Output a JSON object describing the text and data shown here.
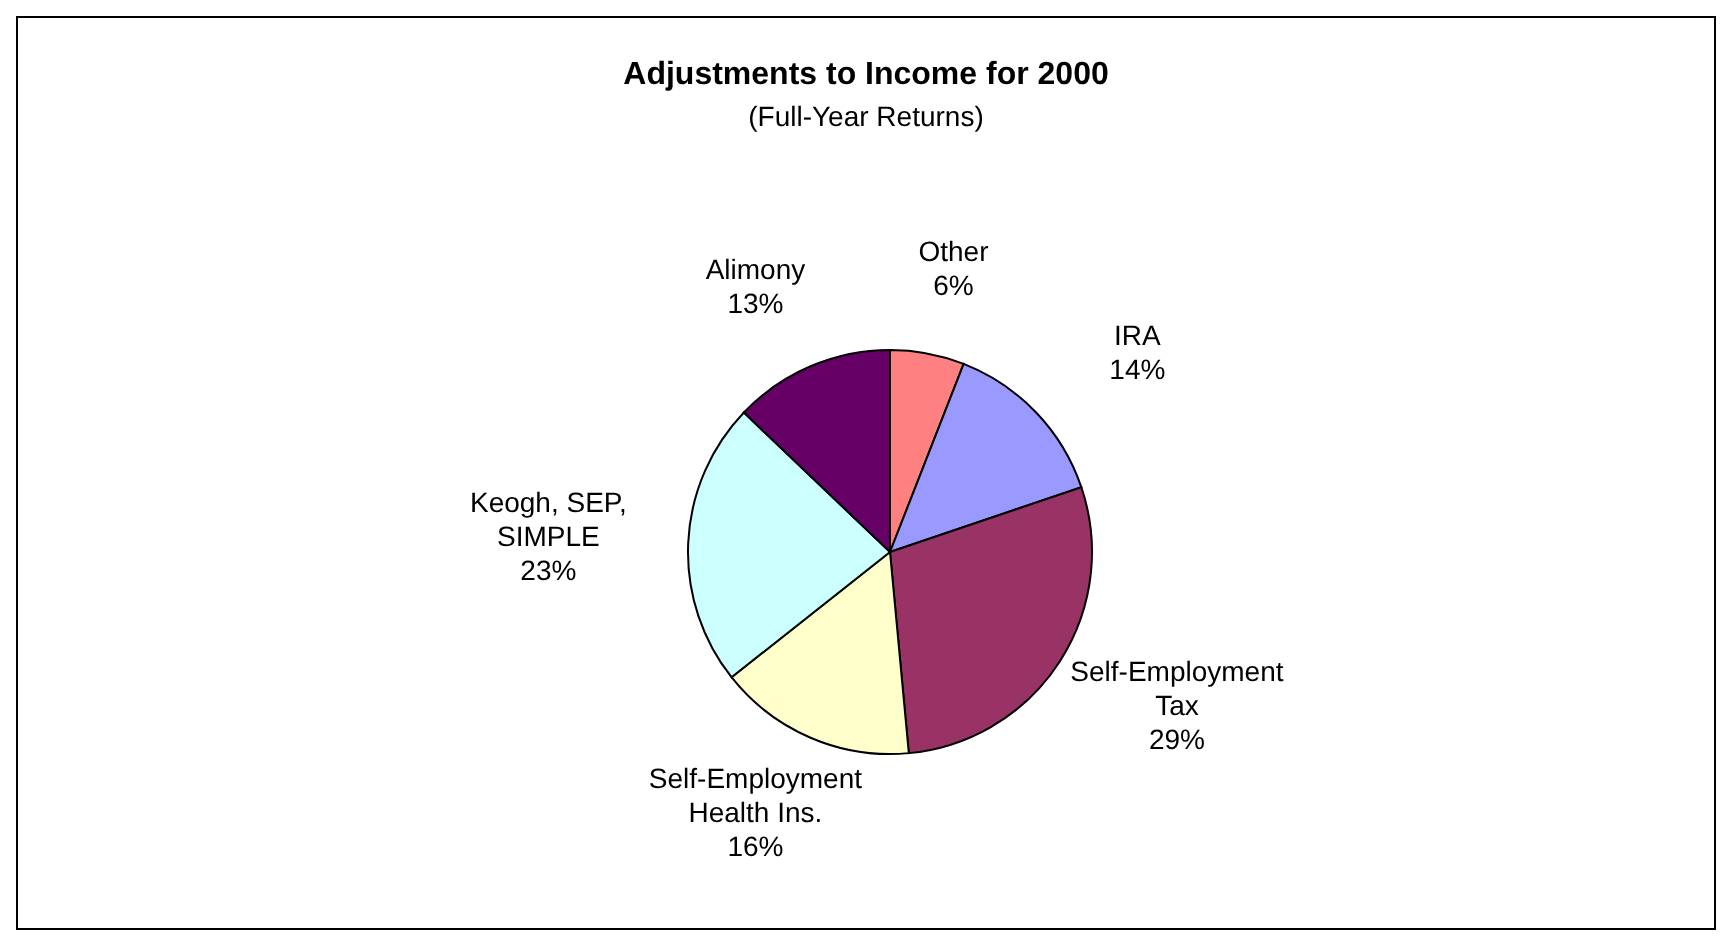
{
  "chart_data": {
    "type": "pie",
    "title": "Adjustments to Income for 2000",
    "subtitle": "(Full-Year Returns)",
    "categories": [
      "Other",
      "IRA",
      "Self-Employment Tax",
      "Self-Employment Health Ins.",
      "Keogh, SEP, SIMPLE",
      "Alimony"
    ],
    "values": [
      6,
      14,
      29,
      16,
      23,
      13
    ],
    "value_labels": [
      "6%",
      "14%",
      "29%",
      "16%",
      "23%",
      "13%"
    ],
    "colors": [
      "#ff8080",
      "#9999ff",
      "#993366",
      "#ffffcc",
      "#ccffff",
      "#660066"
    ],
    "legend": false
  }
}
